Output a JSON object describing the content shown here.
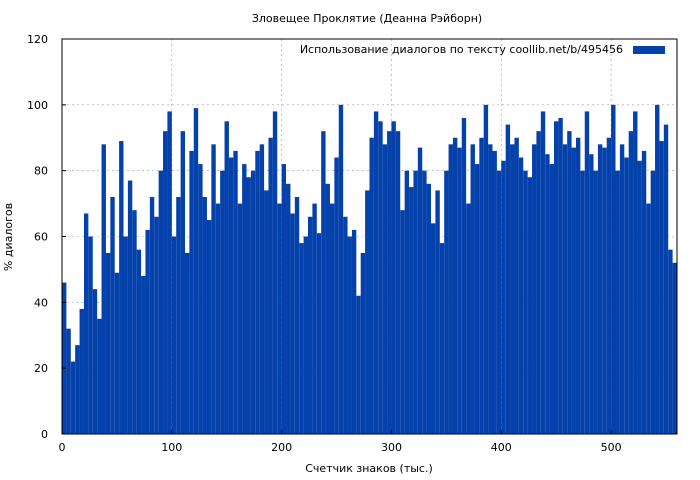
{
  "chart_data": {
    "type": "bar",
    "title": "Зловещее Проклятие (Деанна Рэйборн)",
    "xlabel": "Счетчик знаков (тыс.)",
    "ylabel": "% диалогов",
    "xlim": [
      0,
      560
    ],
    "ylim": [
      0,
      120
    ],
    "x_ticks": [
      0,
      100,
      200,
      300,
      400,
      500
    ],
    "y_ticks": [
      0,
      20,
      40,
      60,
      80,
      100,
      120
    ],
    "grid": true,
    "legend_position": "top-right",
    "series": [
      {
        "name": "Использование диалогов по тексту  coollib.net/b/495456",
        "color": "#0441ab",
        "x": [
          2,
          6,
          10,
          14,
          18,
          22,
          26,
          30,
          34,
          38,
          42,
          46,
          50,
          54,
          58,
          62,
          66,
          70,
          74,
          78,
          82,
          86,
          90,
          94,
          98,
          102,
          106,
          110,
          114,
          118,
          122,
          126,
          130,
          134,
          138,
          142,
          146,
          150,
          154,
          158,
          162,
          166,
          170,
          174,
          178,
          182,
          186,
          190,
          194,
          198,
          202,
          206,
          210,
          214,
          218,
          222,
          226,
          230,
          234,
          238,
          242,
          246,
          250,
          254,
          258,
          262,
          266,
          270,
          274,
          278,
          282,
          286,
          290,
          294,
          298,
          302,
          306,
          310,
          314,
          318,
          322,
          326,
          330,
          334,
          338,
          342,
          346,
          350,
          354,
          358,
          362,
          366,
          370,
          374,
          378,
          382,
          386,
          390,
          394,
          398,
          402,
          406,
          410,
          414,
          418,
          422,
          426,
          430,
          434,
          438,
          442,
          446,
          450,
          454,
          458,
          462,
          466,
          470,
          474,
          478,
          482,
          486,
          490,
          494,
          498,
          502,
          506,
          510,
          514,
          518,
          522,
          526,
          530,
          534,
          538,
          542,
          546,
          550,
          554,
          558
        ],
        "values": [
          46,
          32,
          22,
          27,
          38,
          67,
          60,
          44,
          35,
          88,
          55,
          72,
          49,
          89,
          60,
          77,
          68,
          56,
          48,
          62,
          72,
          66,
          80,
          92,
          98,
          60,
          72,
          92,
          55,
          86,
          99,
          82,
          72,
          65,
          88,
          70,
          80,
          95,
          84,
          86,
          70,
          82,
          78,
          80,
          86,
          88,
          74,
          90,
          98,
          70,
          82,
          76,
          67,
          72,
          58,
          60,
          66,
          70,
          61,
          92,
          76,
          70,
          84,
          100,
          66,
          60,
          62,
          42,
          55,
          74,
          90,
          98,
          95,
          88,
          92,
          95,
          92,
          68,
          80,
          75,
          80,
          87,
          80,
          76,
          64,
          74,
          58,
          80,
          88,
          90,
          87,
          96,
          70,
          88,
          82,
          90,
          100,
          88,
          86,
          80,
          83,
          94,
          88,
          90,
          84,
          80,
          78,
          88,
          92,
          98,
          85,
          82,
          95,
          96,
          88,
          92,
          87,
          90,
          80,
          98,
          85,
          80,
          88,
          87,
          90,
          100,
          80,
          88,
          84,
          92,
          98,
          83,
          86,
          70,
          80,
          100,
          89,
          94,
          56,
          52
        ]
      }
    ]
  }
}
